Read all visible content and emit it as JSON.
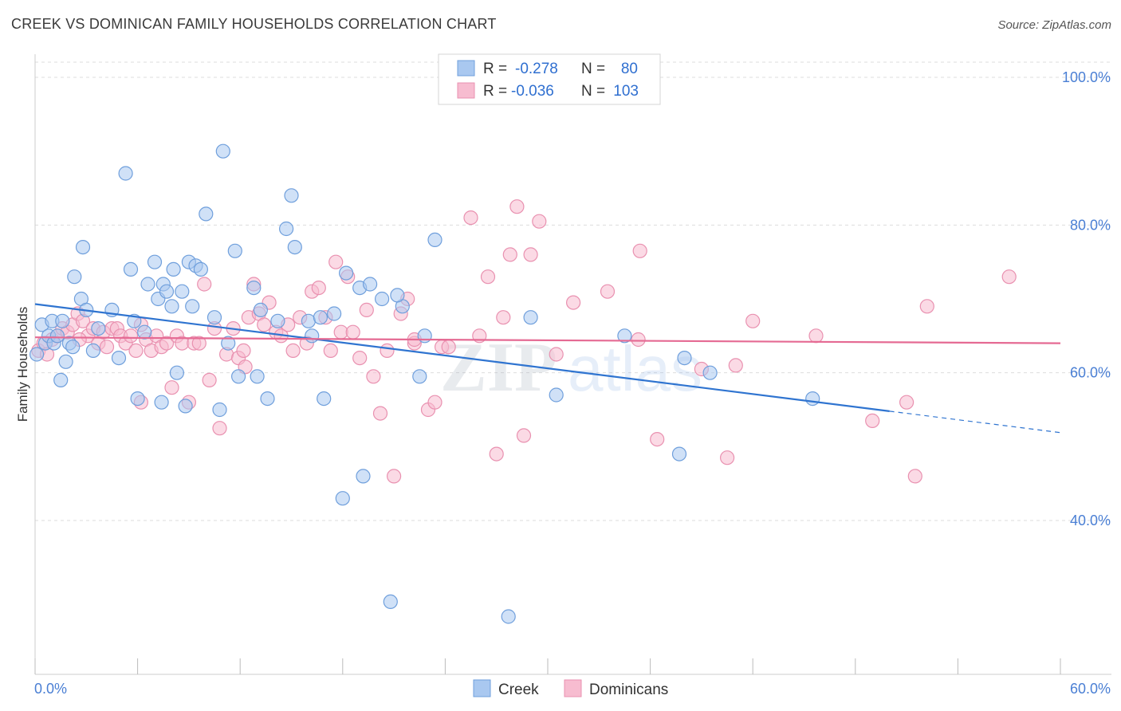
{
  "title": "CREEK VS DOMINICAN FAMILY HOUSEHOLDS CORRELATION CHART",
  "source": "Source: ZipAtlas.com",
  "watermark": {
    "zip": "ZIP",
    "atlas": "atlas"
  },
  "colors": {
    "creek_fill": "#a9c8f0",
    "creek_stroke": "#6f9fdc",
    "creek_line": "#2f74d0",
    "dom_fill": "#f7bcd0",
    "dom_stroke": "#e991b0",
    "dom_line": "#e56a93",
    "grid": "#dddddd",
    "tick_text": "#4a7fd4"
  },
  "stats": {
    "creek": {
      "r_label": "R =",
      "r_value": "-0.278",
      "n_label": "N =",
      "n_value": "80"
    },
    "dominicans": {
      "r_label": "R =",
      "r_value": "-0.036",
      "n_label": "N =",
      "n_value": "103"
    }
  },
  "chart_data": {
    "type": "scatter",
    "title": "CREEK VS DOMINICAN FAMILY HOUSEHOLDS CORRELATION CHART",
    "xlabel": "",
    "ylabel": "Family Households",
    "xlim": [
      0,
      60
    ],
    "ylim": [
      18,
      102
    ],
    "x_tick_labels": [
      "0.0%",
      "60.0%"
    ],
    "y_ticks": [
      40,
      60,
      80,
      100
    ],
    "y_tick_labels": [
      "40.0%",
      "60.0%",
      "80.0%",
      "100.0%"
    ],
    "grid": true,
    "legend_position": "bottom",
    "series": [
      {
        "name": "Creek",
        "color": "#a9c8f0",
        "points": [
          [
            0.1,
            62.5
          ],
          [
            0.4,
            66.5
          ],
          [
            0.6,
            64
          ],
          [
            0.8,
            65
          ],
          [
            1,
            67
          ],
          [
            1.1,
            64
          ],
          [
            1.3,
            65
          ],
          [
            1.5,
            59
          ],
          [
            1.6,
            67
          ],
          [
            1.8,
            61.5
          ],
          [
            2,
            64
          ],
          [
            2.2,
            63.5
          ],
          [
            2.7,
            70
          ],
          [
            2.8,
            77
          ],
          [
            3,
            68.5
          ],
          [
            3.7,
            66
          ],
          [
            4.5,
            68.5
          ],
          [
            4.9,
            62
          ],
          [
            5.3,
            87
          ],
          [
            5.6,
            74
          ],
          [
            5.8,
            67
          ],
          [
            6.0,
            56.5
          ],
          [
            6.6,
            72
          ],
          [
            7.0,
            75
          ],
          [
            7.2,
            70
          ],
          [
            7.4,
            56
          ],
          [
            7.5,
            72
          ],
          [
            7.7,
            71
          ],
          [
            8,
            69
          ],
          [
            8.1,
            74
          ],
          [
            8.3,
            60
          ],
          [
            8.6,
            71
          ],
          [
            8.8,
            55.5
          ],
          [
            9,
            75
          ],
          [
            9.2,
            69
          ],
          [
            9.4,
            74.5
          ],
          [
            9.7,
            74
          ],
          [
            10,
            81.5
          ],
          [
            10.5,
            67.5
          ],
          [
            10.8,
            55
          ],
          [
            11,
            90
          ],
          [
            11.3,
            64
          ],
          [
            11.7,
            76.5
          ],
          [
            11.9,
            59.5
          ],
          [
            12.8,
            71.5
          ],
          [
            13.0,
            59.5
          ],
          [
            13.2,
            68.5
          ],
          [
            13.6,
            56.5
          ],
          [
            14.2,
            67
          ],
          [
            14.7,
            79.5
          ],
          [
            15.0,
            84
          ],
          [
            15.2,
            77
          ],
          [
            16.0,
            67
          ],
          [
            16.2,
            65
          ],
          [
            16.7,
            67.5
          ],
          [
            16.9,
            56.5
          ],
          [
            17.5,
            68
          ],
          [
            18.0,
            43
          ],
          [
            18.2,
            73.5
          ],
          [
            19.0,
            71.5
          ],
          [
            19.2,
            46
          ],
          [
            19.6,
            72
          ],
          [
            20.3,
            70
          ],
          [
            21.5,
            69
          ],
          [
            20.8,
            29
          ],
          [
            21.2,
            70.5
          ],
          [
            22.5,
            59.5
          ],
          [
            23.4,
            78
          ],
          [
            22.8,
            65
          ],
          [
            27.7,
            27
          ],
          [
            29.0,
            67.5
          ],
          [
            30.5,
            57
          ],
          [
            34.5,
            65
          ],
          [
            37.7,
            49
          ],
          [
            38.0,
            62
          ],
          [
            39.5,
            60
          ],
          [
            45.5,
            56.5
          ],
          [
            6.4,
            65.5
          ],
          [
            3.4,
            63
          ],
          [
            2.3,
            73
          ]
        ]
      },
      {
        "name": "Dominicans",
        "color": "#f7bcd0",
        "points": [
          [
            0.2,
            63
          ],
          [
            0.5,
            64
          ],
          [
            0.7,
            62.5
          ],
          [
            1.0,
            64.5
          ],
          [
            1.3,
            65
          ],
          [
            1.6,
            66
          ],
          [
            1.9,
            65.5
          ],
          [
            2.2,
            66.5
          ],
          [
            2.5,
            68
          ],
          [
            2.8,
            67
          ],
          [
            3.1,
            65
          ],
          [
            3.4,
            66
          ],
          [
            3.7,
            64
          ],
          [
            4,
            65.5
          ],
          [
            4.2,
            63.5
          ],
          [
            4.5,
            66
          ],
          [
            4.8,
            66
          ],
          [
            5.0,
            65
          ],
          [
            5.3,
            64
          ],
          [
            5.6,
            65
          ],
          [
            5.9,
            63
          ],
          [
            6.2,
            56
          ],
          [
            6.5,
            64.5
          ],
          [
            6.8,
            63
          ],
          [
            7.1,
            65
          ],
          [
            7.4,
            63.5
          ],
          [
            7.7,
            64
          ],
          [
            8.0,
            58
          ],
          [
            8.3,
            65
          ],
          [
            8.6,
            64
          ],
          [
            9.0,
            56
          ],
          [
            9.3,
            64
          ],
          [
            9.6,
            64
          ],
          [
            9.9,
            72
          ],
          [
            10.2,
            59
          ],
          [
            10.5,
            66
          ],
          [
            10.8,
            52.5
          ],
          [
            11.2,
            62.5
          ],
          [
            11.6,
            66
          ],
          [
            11.9,
            62
          ],
          [
            12.2,
            63
          ],
          [
            12.5,
            67.5
          ],
          [
            12.8,
            72
          ],
          [
            13.1,
            68
          ],
          [
            13.4,
            66.5
          ],
          [
            13.7,
            69.5
          ],
          [
            14.1,
            65.5
          ],
          [
            14.4,
            65
          ],
          [
            14.8,
            66.5
          ],
          [
            15.1,
            63
          ],
          [
            15.5,
            67.5
          ],
          [
            15.9,
            64
          ],
          [
            16.2,
            71
          ],
          [
            16.6,
            71.5
          ],
          [
            17.0,
            67.5
          ],
          [
            17.3,
            63
          ],
          [
            17.6,
            75
          ],
          [
            17.9,
            65.5
          ],
          [
            18.3,
            73
          ],
          [
            18.6,
            65.5
          ],
          [
            19.0,
            62
          ],
          [
            19.4,
            68.5
          ],
          [
            19.8,
            59.5
          ],
          [
            20.2,
            54.5
          ],
          [
            20.6,
            63
          ],
          [
            21.0,
            46
          ],
          [
            21.4,
            68
          ],
          [
            21.8,
            70
          ],
          [
            22.2,
            64
          ],
          [
            23.0,
            55
          ],
          [
            23.4,
            56
          ],
          [
            23.8,
            63.5
          ],
          [
            24.2,
            63.5
          ],
          [
            25.5,
            81
          ],
          [
            26.0,
            65
          ],
          [
            26.5,
            73
          ],
          [
            27.0,
            49
          ],
          [
            27.4,
            67.5
          ],
          [
            27.8,
            76
          ],
          [
            28.2,
            82.5
          ],
          [
            28.6,
            51.5
          ],
          [
            29.0,
            76
          ],
          [
            29.5,
            80.5
          ],
          [
            30.5,
            62.5
          ],
          [
            31.5,
            69.5
          ],
          [
            33.5,
            71
          ],
          [
            35.4,
            76.5
          ],
          [
            36.4,
            51
          ],
          [
            39.0,
            60.5
          ],
          [
            40.5,
            48.5
          ],
          [
            41.0,
            61
          ],
          [
            42.0,
            67
          ],
          [
            45.7,
            65
          ],
          [
            49.0,
            53.5
          ],
          [
            51.0,
            56
          ],
          [
            51.5,
            46
          ],
          [
            52.2,
            69
          ],
          [
            57.0,
            73
          ],
          [
            6.2,
            66.5
          ],
          [
            2.6,
            64.5
          ],
          [
            12.3,
            60.8
          ],
          [
            22.2,
            64.5
          ],
          [
            35.3,
            64.5
          ]
        ]
      }
    ],
    "trend_lines": [
      {
        "name": "Creek",
        "x": [
          0,
          50
        ],
        "y": [
          69.3,
          54.8
        ],
        "dashed_extension_x": [
          50,
          60
        ],
        "dashed_extension_y": [
          54.8,
          51.9
        ]
      },
      {
        "name": "Dominicans",
        "x": [
          0,
          60
        ],
        "y": [
          64.8,
          64.0
        ]
      }
    ]
  }
}
